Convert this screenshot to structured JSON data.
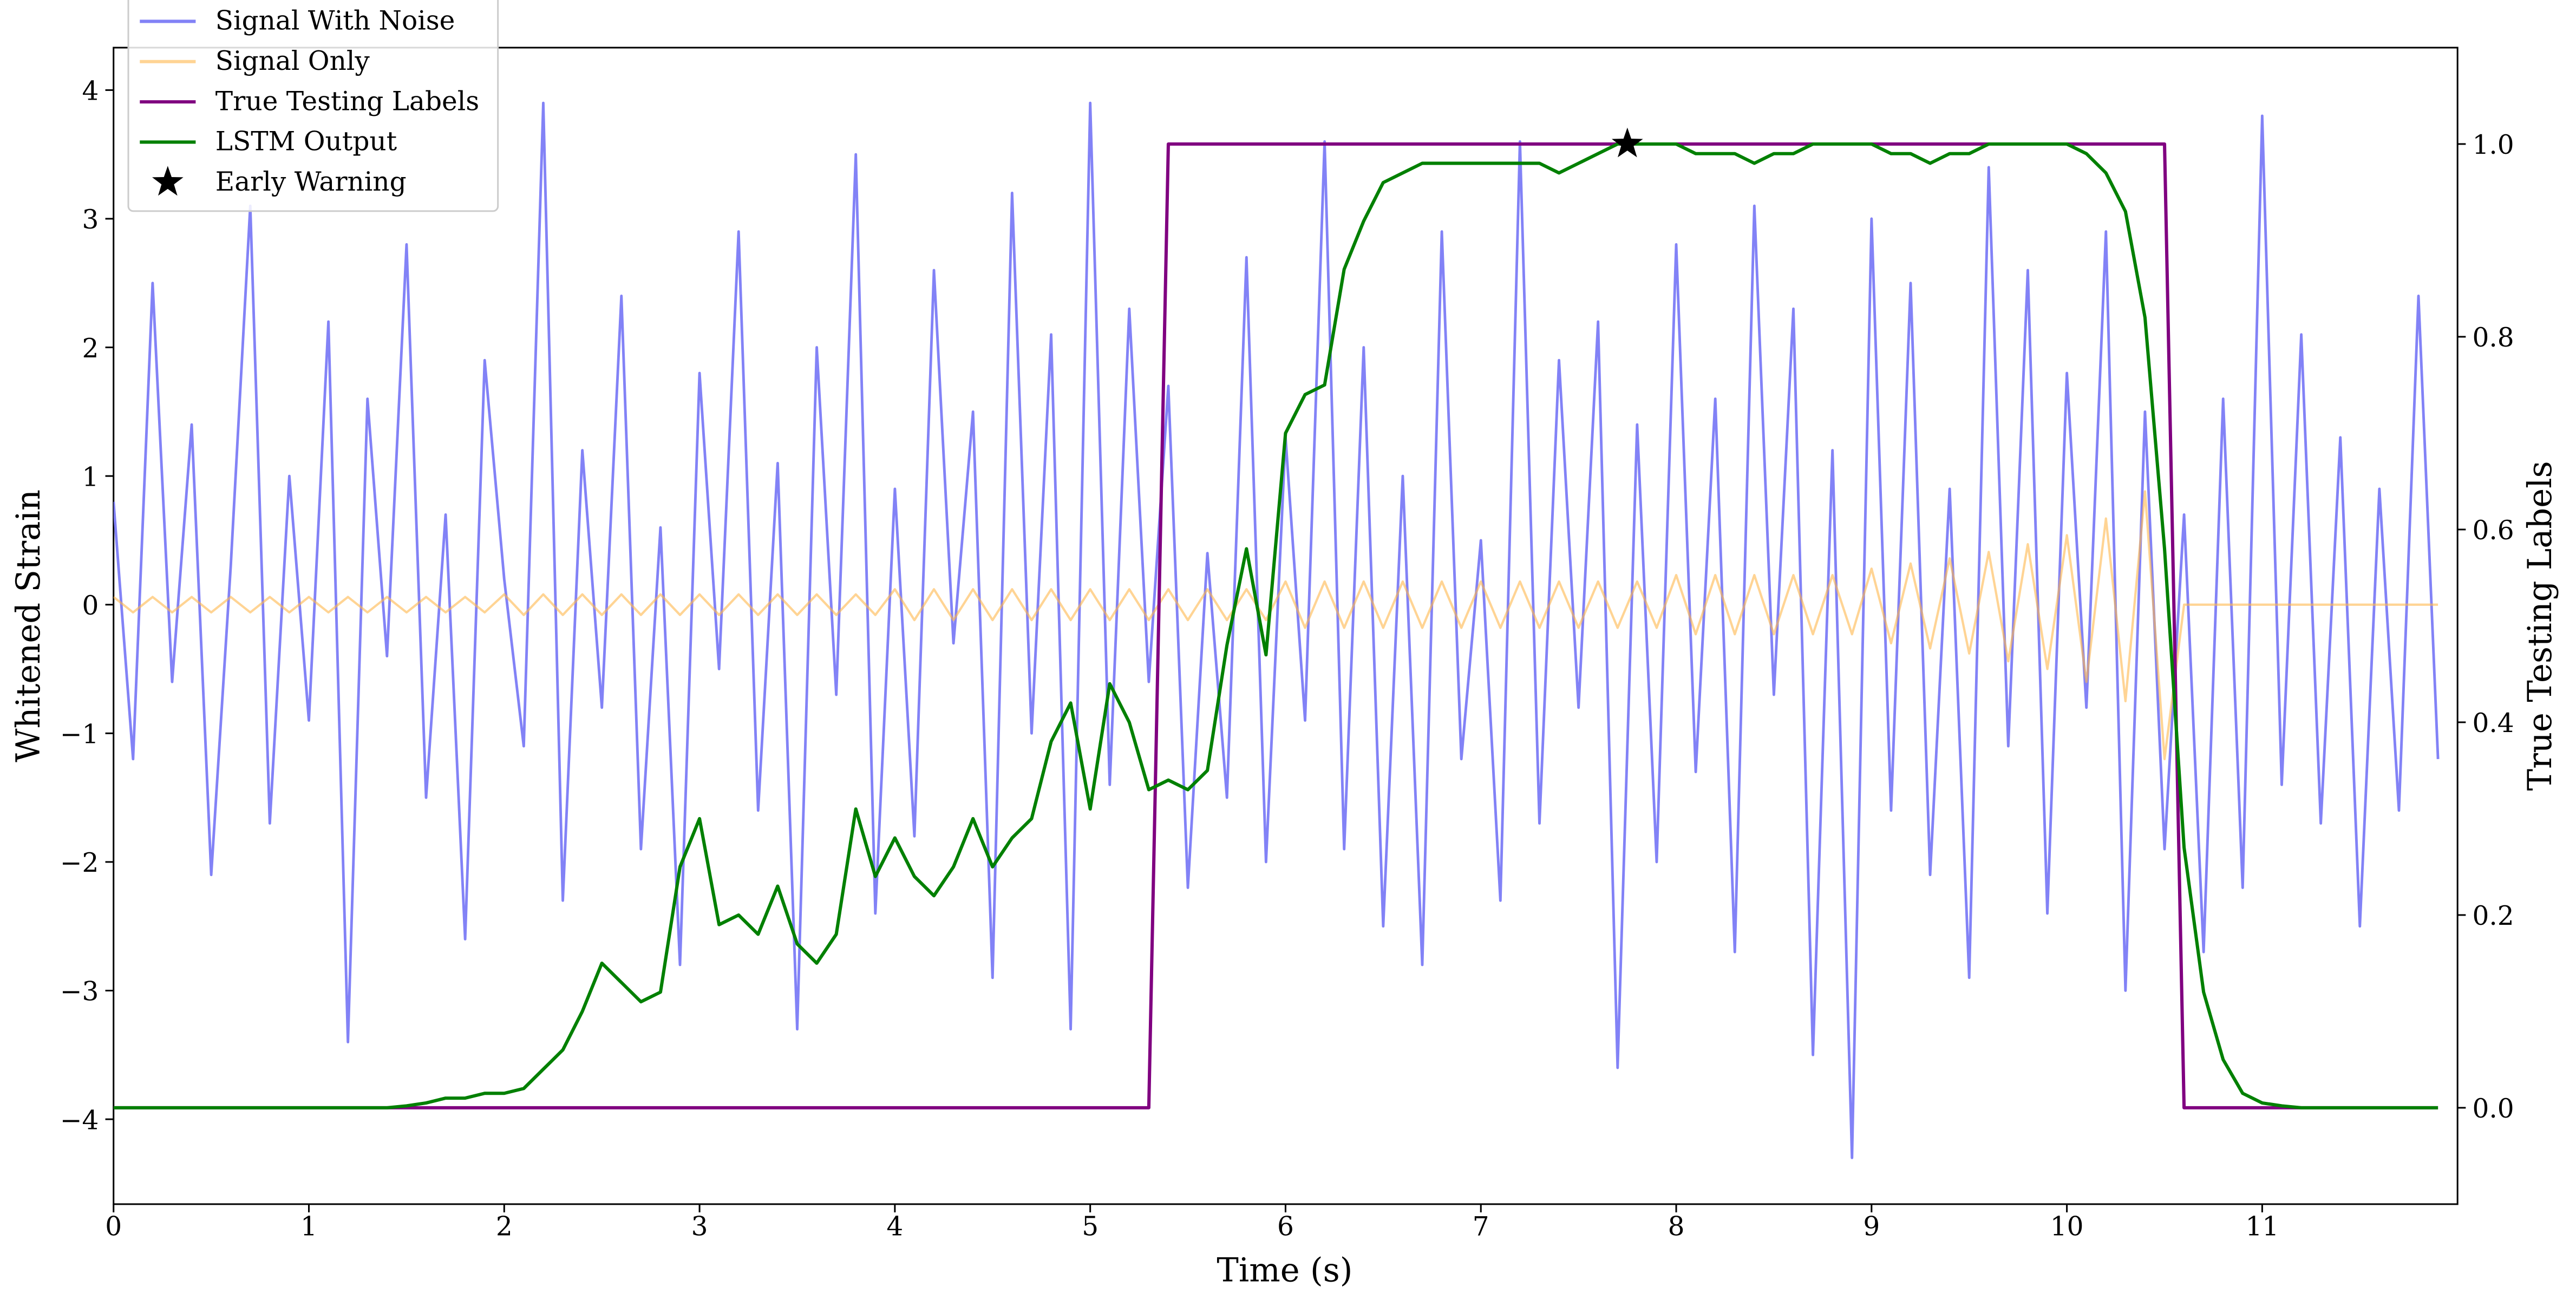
{
  "chart_data": {
    "type": "line",
    "x_label": "Time (s)",
    "y_label": "Whitened Strain",
    "y2_label": "True Testing Labels",
    "xlim": [
      0,
      12
    ],
    "ylim": [
      -4.66,
      4.33
    ],
    "y2lim": [
      -0.1,
      1.1
    ],
    "xticks": [
      0,
      1,
      2,
      3,
      4,
      5,
      6,
      7,
      8,
      9,
      10,
      11
    ],
    "yticks": [
      {
        "value": -4,
        "label": "−4"
      },
      {
        "value": -3,
        "label": "−3"
      },
      {
        "value": -2,
        "label": "−2"
      },
      {
        "value": -1,
        "label": "−1"
      },
      0,
      1,
      2,
      3,
      4
    ],
    "y2ticks": [
      {
        "value": 0,
        "label": "0.0"
      },
      {
        "value": 0.2,
        "label": "0.2"
      },
      {
        "value": 0.4,
        "label": "0.4"
      },
      {
        "value": 0.6,
        "label": "0.6"
      },
      {
        "value": 0.8,
        "label": "0.8"
      },
      {
        "value": 1,
        "label": "1.0"
      }
    ],
    "legend": "upper left",
    "x": [
      0,
      0.1,
      0.2,
      0.3,
      0.4,
      0.5,
      0.6,
      0.7,
      0.8,
      0.9,
      1,
      1.1,
      1.2,
      1.3,
      1.4,
      1.5,
      1.6,
      1.7,
      1.8,
      1.9,
      2,
      2.1,
      2.2,
      2.3,
      2.4,
      2.5,
      2.6,
      2.7,
      2.8,
      2.9,
      3,
      3.1,
      3.2,
      3.3,
      3.4,
      3.5,
      3.6,
      3.7,
      3.8,
      3.9,
      4,
      4.1,
      4.2,
      4.3,
      4.4,
      4.5,
      4.6,
      4.7,
      4.8,
      4.9,
      5,
      5.1,
      5.2,
      5.3,
      5.4,
      5.5,
      5.6,
      5.7,
      5.8,
      5.9,
      6,
      6.1,
      6.2,
      6.3,
      6.4,
      6.5,
      6.6,
      6.7,
      6.8,
      6.9,
      7,
      7.1,
      7.2,
      7.3,
      7.4,
      7.5,
      7.6,
      7.7,
      7.8,
      7.9,
      8,
      8.1,
      8.2,
      8.3,
      8.4,
      8.5,
      8.6,
      8.7,
      8.8,
      8.9,
      9,
      9.1,
      9.2,
      9.3,
      9.4,
      9.5,
      9.6,
      9.7,
      9.8,
      9.9,
      10,
      10.1,
      10.2,
      10.3,
      10.4,
      10.5,
      10.6,
      10.7,
      10.8,
      10.9,
      11,
      11.1,
      11.2,
      11.3,
      11.4,
      11.5,
      11.6,
      11.7,
      11.8,
      11.9
    ],
    "series": [
      {
        "name": "Signal With Noise",
        "color": "#7b7bf5",
        "axis": "y",
        "values": [
          0.8,
          -1.2,
          2.5,
          -0.6,
          1.4,
          -2.1,
          0.3,
          3.1,
          -1.7,
          1.0,
          -0.9,
          2.2,
          -3.4,
          1.6,
          -0.4,
          2.8,
          -1.5,
          0.7,
          -2.6,
          1.9,
          0.2,
          -1.1,
          3.9,
          -2.3,
          1.2,
          -0.8,
          2.4,
          -1.9,
          0.6,
          -2.8,
          1.8,
          -0.5,
          2.9,
          -1.6,
          1.1,
          -3.3,
          2.0,
          -0.7,
          3.5,
          -2.4,
          0.9,
          -1.8,
          2.6,
          -0.3,
          1.5,
          -2.9,
          3.2,
          -1.0,
          2.1,
          -3.3,
          3.9,
          -1.4,
          2.3,
          -0.6,
          1.7,
          -2.2,
          0.4,
          -1.5,
          2.7,
          -2.0,
          1.3,
          -0.9,
          3.6,
          -1.9,
          2.0,
          -2.5,
          1.0,
          -2.8,
          2.9,
          -1.2,
          0.5,
          -2.3,
          3.6,
          -1.7,
          1.9,
          -0.8,
          2.2,
          -3.6,
          1.4,
          -2.0,
          2.8,
          -1.3,
          1.6,
          -2.7,
          3.1,
          -0.7,
          2.3,
          -3.5,
          1.2,
          -4.3,
          3.0,
          -1.6,
          2.5,
          -2.1,
          0.9,
          -2.9,
          3.4,
          -1.1,
          2.6,
          -2.4,
          1.8,
          -0.8,
          2.9,
          -3.0,
          1.5,
          -1.9,
          0.7,
          -2.7,
          1.6,
          -2.2,
          3.8,
          -1.4,
          2.1,
          -1.7,
          1.3,
          -2.5,
          0.9,
          -1.6,
          2.4,
          -1.2
        ]
      },
      {
        "name": "Signal Only",
        "color": "#ffb84d",
        "axis": "y",
        "values": [
          0.06,
          -0.06,
          0.06,
          -0.06,
          0.06,
          -0.06,
          0.06,
          -0.06,
          0.06,
          -0.06,
          0.06,
          -0.06,
          0.06,
          -0.06,
          0.06,
          -0.06,
          0.06,
          -0.06,
          0.06,
          -0.06,
          0.08,
          -0.08,
          0.08,
          -0.08,
          0.08,
          -0.08,
          0.08,
          -0.08,
          0.08,
          -0.08,
          0.08,
          -0.08,
          0.08,
          -0.08,
          0.08,
          -0.08,
          0.08,
          -0.08,
          0.08,
          -0.08,
          0.12,
          -0.12,
          0.12,
          -0.12,
          0.12,
          -0.12,
          0.12,
          -0.12,
          0.12,
          -0.12,
          0.12,
          -0.12,
          0.12,
          -0.12,
          0.12,
          -0.12,
          0.12,
          -0.12,
          0.12,
          -0.12,
          0.18,
          -0.18,
          0.18,
          -0.18,
          0.18,
          -0.18,
          0.18,
          -0.18,
          0.18,
          -0.18,
          0.18,
          -0.18,
          0.18,
          -0.18,
          0.18,
          -0.18,
          0.18,
          -0.18,
          0.18,
          -0.18,
          0.23,
          -0.23,
          0.23,
          -0.23,
          0.23,
          -0.23,
          0.23,
          -0.23,
          0.23,
          -0.23,
          0.28,
          -0.3,
          0.32,
          -0.34,
          0.36,
          -0.38,
          0.41,
          -0.44,
          0.47,
          -0.5,
          0.54,
          -0.6,
          0.67,
          -0.75,
          0.88,
          -1.2,
          0,
          0,
          0,
          0,
          0,
          0,
          0,
          0,
          0,
          0,
          0,
          0,
          0,
          0
        ]
      },
      {
        "name": "True Testing Labels",
        "color": "#800080",
        "axis": "y2",
        "values": [
          0,
          0,
          0,
          0,
          0,
          0,
          0,
          0,
          0,
          0,
          0,
          0,
          0,
          0,
          0,
          0,
          0,
          0,
          0,
          0,
          0,
          0,
          0,
          0,
          0,
          0,
          0,
          0,
          0,
          0,
          0,
          0,
          0,
          0,
          0,
          0,
          0,
          0,
          0,
          0,
          0,
          0,
          0,
          0,
          0,
          0,
          0,
          0,
          0,
          0,
          0,
          0,
          0,
          0,
          1,
          1,
          1,
          1,
          1,
          1,
          1,
          1,
          1,
          1,
          1,
          1,
          1,
          1,
          1,
          1,
          1,
          1,
          1,
          1,
          1,
          1,
          1,
          1,
          1,
          1,
          1,
          1,
          1,
          1,
          1,
          1,
          1,
          1,
          1,
          1,
          1,
          1,
          1,
          1,
          1,
          1,
          1,
          1,
          1,
          1,
          1,
          1,
          1,
          1,
          1,
          1,
          0,
          0,
          0,
          0,
          0,
          0,
          0,
          0,
          0,
          0,
          0,
          0,
          0,
          0
        ]
      },
      {
        "name": "LSTM Output",
        "color": "#008000",
        "axis": "y2",
        "values": [
          0,
          0,
          0,
          0,
          0,
          0,
          0,
          0,
          0,
          0,
          0,
          0,
          0,
          0,
          0,
          0.002,
          0.005,
          0.01,
          0.01,
          0.015,
          0.015,
          0.02,
          0.04,
          0.06,
          0.1,
          0.15,
          0.13,
          0.11,
          0.12,
          0.25,
          0.3,
          0.19,
          0.2,
          0.18,
          0.23,
          0.17,
          0.15,
          0.18,
          0.31,
          0.24,
          0.28,
          0.24,
          0.22,
          0.25,
          0.3,
          0.25,
          0.28,
          0.3,
          0.38,
          0.42,
          0.31,
          0.44,
          0.4,
          0.33,
          0.34,
          0.33,
          0.35,
          0.48,
          0.58,
          0.47,
          0.7,
          0.74,
          0.75,
          0.87,
          0.92,
          0.96,
          0.97,
          0.98,
          0.98,
          0.98,
          0.98,
          0.98,
          0.98,
          0.98,
          0.97,
          0.98,
          0.99,
          1.0,
          1.0,
          1.0,
          1.0,
          0.99,
          0.99,
          0.99,
          0.98,
          0.99,
          0.99,
          1.0,
          1.0,
          1.0,
          1.0,
          0.99,
          0.99,
          0.98,
          0.99,
          0.99,
          1.0,
          1.0,
          1.0,
          1.0,
          1.0,
          0.99,
          0.97,
          0.93,
          0.82,
          0.58,
          0.27,
          0.12,
          0.05,
          0.015,
          0.005,
          0.002,
          0,
          0,
          0,
          0,
          0,
          0,
          0,
          0
        ]
      }
    ],
    "markers": [
      {
        "name": "Early Warning",
        "x": 7.75,
        "y": 1.0,
        "axis": "y2",
        "color": "#000000"
      }
    ]
  }
}
